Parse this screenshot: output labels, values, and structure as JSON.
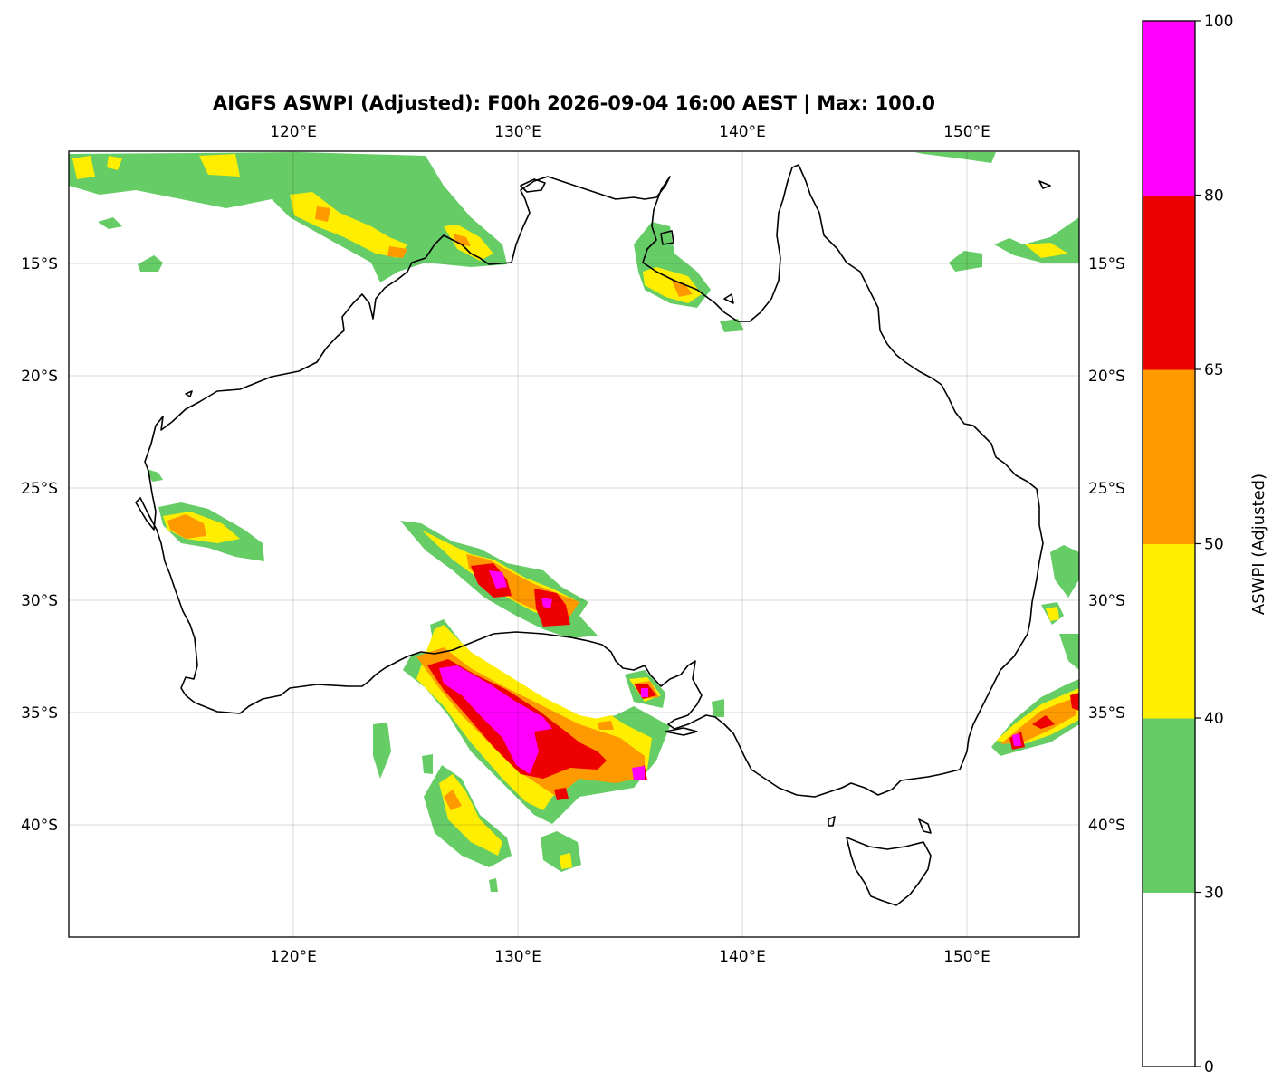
{
  "title": "AIGFS ASWPI (Adjusted): F00h 2026-09-04 16:00 AEST | Max: 100.0",
  "map": {
    "lon_range": [
      110,
      155
    ],
    "lat_range": [
      -45,
      -10
    ],
    "lon_ticks": [
      {
        "value": 120,
        "label": "120°E"
      },
      {
        "value": 130,
        "label": "130°E"
      },
      {
        "value": 140,
        "label": "140°E"
      },
      {
        "value": 150,
        "label": "150°E"
      }
    ],
    "lat_ticks": [
      {
        "value": -15,
        "label": "15°S"
      },
      {
        "value": -20,
        "label": "20°S"
      },
      {
        "value": -25,
        "label": "25°S"
      },
      {
        "value": -30,
        "label": "30°S"
      },
      {
        "value": -35,
        "label": "35°S"
      },
      {
        "value": -40,
        "label": "40°S"
      }
    ],
    "gridlines": true,
    "coastline": "Australia and Tasmania outline"
  },
  "colorbar": {
    "label": "ASWPI (Adjusted)",
    "ticks": [
      "0",
      "30",
      "40",
      "50",
      "65",
      "80",
      "100"
    ],
    "bins": [
      {
        "from": 0,
        "to": 30,
        "color": "#ffffff"
      },
      {
        "from": 30,
        "to": 40,
        "color": "#66cc66"
      },
      {
        "from": 40,
        "to": 50,
        "color": "#ffee00"
      },
      {
        "from": 50,
        "to": 65,
        "color": "#ff9900"
      },
      {
        "from": 65,
        "to": 80,
        "color": "#ee0000"
      },
      {
        "from": 80,
        "to": 100,
        "color": "#ff00ff"
      }
    ]
  }
}
